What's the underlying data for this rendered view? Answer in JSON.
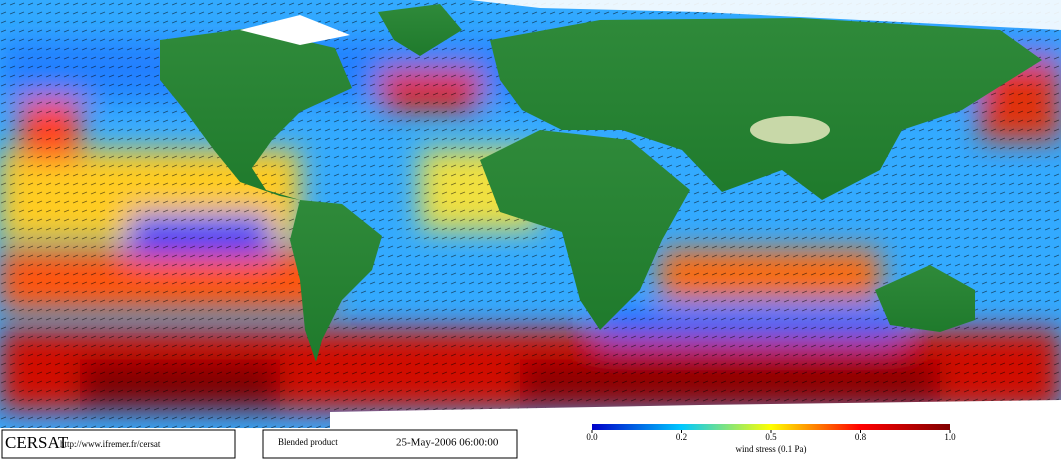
{
  "logo": "CERSAT",
  "url": "http://www.ifremer.fr/cersat",
  "product": "Blended product",
  "timestamp": "25-May-2006 06:00:00",
  "colorbar": {
    "label": "wind stress (0.1 Pa)",
    "colors": [
      "#0000c8",
      "#00c8ff",
      "#ffff00",
      "#ff0000",
      "#800000"
    ],
    "ticks": [
      {
        "value": 0,
        "label": "0.0"
      },
      {
        "value": 0.2,
        "label": "0.2"
      },
      {
        "value": 0.5,
        "label": "0.5"
      },
      {
        "value": 0.8,
        "label": "0.8"
      },
      {
        "value": 1,
        "label": "1.0"
      }
    ]
  }
}
